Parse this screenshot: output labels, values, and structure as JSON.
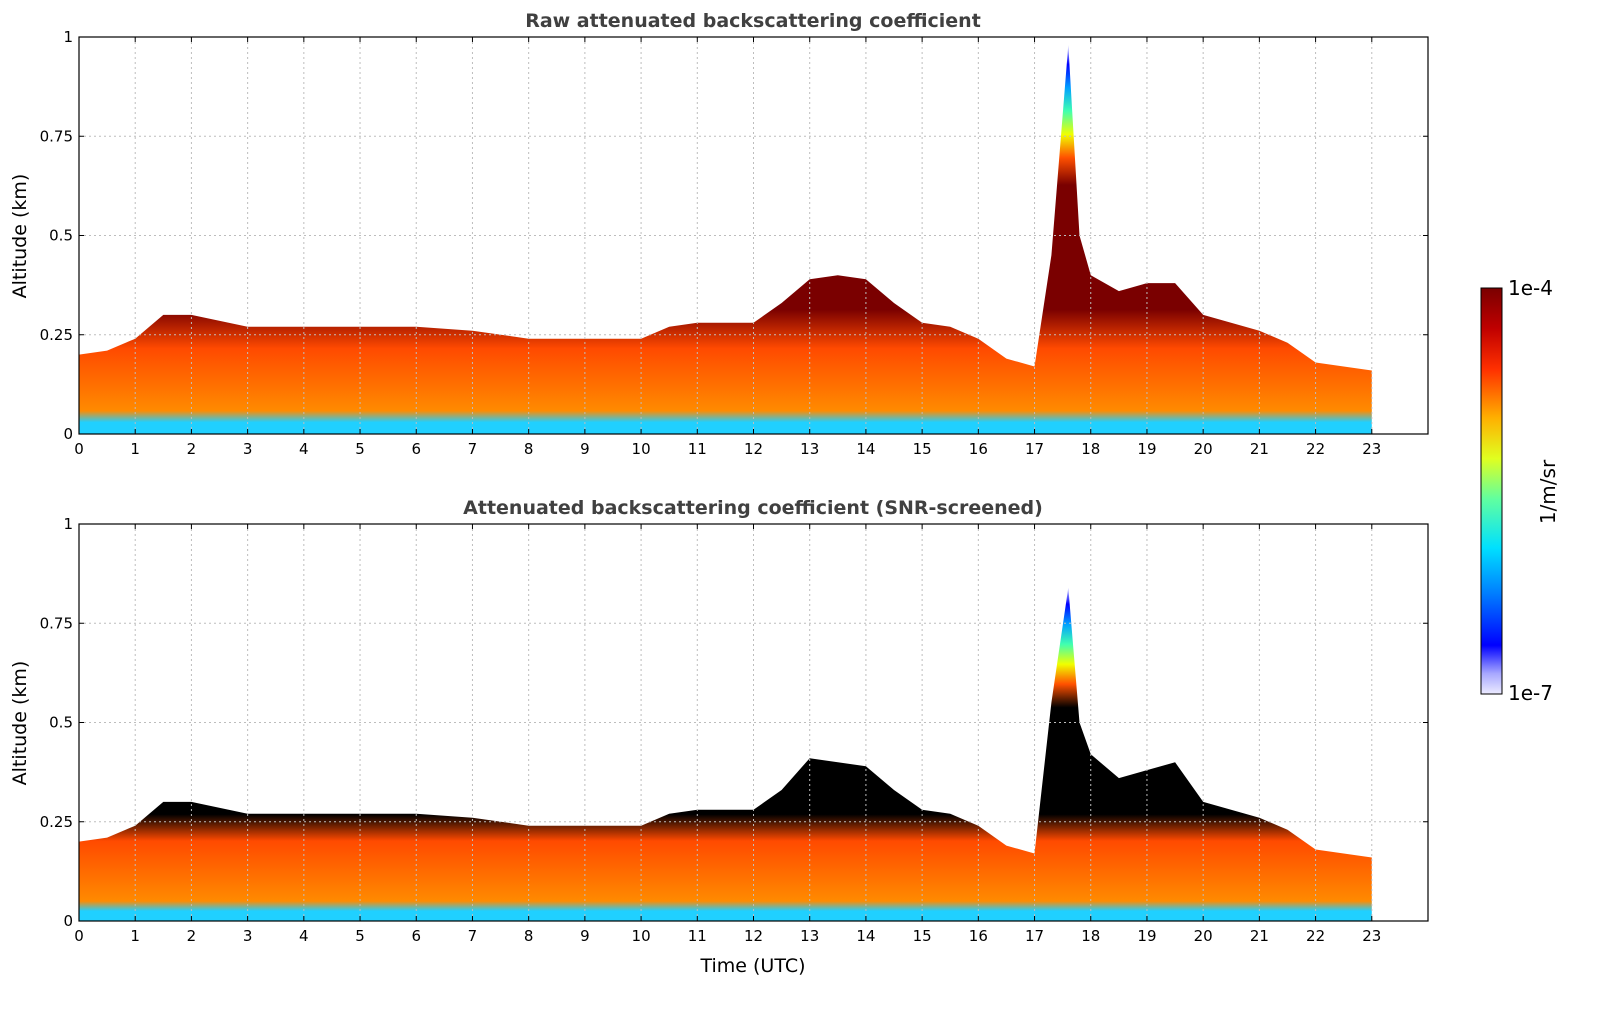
{
  "chart_data": [
    {
      "type": "heatmap",
      "title": "Raw attenuated backscattering coefficient",
      "xlabel": "",
      "ylabel": "Altitude (km)",
      "xlim": [
        0,
        24
      ],
      "ylim": [
        0,
        1
      ],
      "xticks": [
        "0",
        "1",
        "2",
        "3",
        "4",
        "5",
        "6",
        "7",
        "8",
        "9",
        "10",
        "11",
        "12",
        "13",
        "14",
        "15",
        "16",
        "17",
        "18",
        "19",
        "20",
        "21",
        "22",
        "23"
      ],
      "yticks": [
        "0",
        "0.25",
        "0.5",
        "0.75",
        "1"
      ],
      "grid": true,
      "data_end_hour": 23,
      "layer_top_km": [
        [
          0,
          0.2
        ],
        [
          0.5,
          0.21
        ],
        [
          1,
          0.24
        ],
        [
          1.5,
          0.3
        ],
        [
          2,
          0.3
        ],
        [
          3,
          0.27
        ],
        [
          4,
          0.27
        ],
        [
          5,
          0.27
        ],
        [
          6,
          0.27
        ],
        [
          7,
          0.26
        ],
        [
          8,
          0.24
        ],
        [
          9,
          0.24
        ],
        [
          10,
          0.24
        ],
        [
          10.5,
          0.27
        ],
        [
          11,
          0.28
        ],
        [
          12,
          0.28
        ],
        [
          12.5,
          0.33
        ],
        [
          13,
          0.39
        ],
        [
          13.5,
          0.4
        ],
        [
          14,
          0.39
        ],
        [
          14.5,
          0.33
        ],
        [
          15,
          0.28
        ],
        [
          15.5,
          0.27
        ],
        [
          16,
          0.24
        ],
        [
          16.5,
          0.19
        ],
        [
          17,
          0.17
        ],
        [
          17.3,
          0.45
        ],
        [
          17.6,
          0.98
        ],
        [
          17.8,
          0.5
        ],
        [
          18,
          0.4
        ],
        [
          18.5,
          0.36
        ],
        [
          19,
          0.38
        ],
        [
          19.5,
          0.38
        ],
        [
          20,
          0.3
        ],
        [
          21,
          0.26
        ],
        [
          21.5,
          0.23
        ],
        [
          22,
          0.18
        ],
        [
          23,
          0.16
        ]
      ]
    },
    {
      "type": "heatmap",
      "title": "Attenuated backscattering coefficient (SNR-screened)",
      "xlabel": "Time (UTC)",
      "ylabel": "Altitude (km)",
      "xlim": [
        0,
        24
      ],
      "ylim": [
        0,
        1
      ],
      "xticks": [
        "0",
        "1",
        "2",
        "3",
        "4",
        "5",
        "6",
        "7",
        "8",
        "9",
        "10",
        "11",
        "12",
        "13",
        "14",
        "15",
        "16",
        "17",
        "18",
        "19",
        "20",
        "21",
        "22",
        "23"
      ],
      "yticks": [
        "0",
        "0.25",
        "0.5",
        "0.75",
        "1"
      ],
      "grid": true,
      "data_end_hour": 23,
      "layer_top_km": [
        [
          0,
          0.2
        ],
        [
          0.5,
          0.21
        ],
        [
          1,
          0.24
        ],
        [
          1.5,
          0.3
        ],
        [
          2,
          0.3
        ],
        [
          3,
          0.27
        ],
        [
          4,
          0.27
        ],
        [
          5,
          0.27
        ],
        [
          6,
          0.27
        ],
        [
          7,
          0.26
        ],
        [
          8,
          0.24
        ],
        [
          9,
          0.24
        ],
        [
          10,
          0.24
        ],
        [
          10.5,
          0.27
        ],
        [
          11,
          0.28
        ],
        [
          12,
          0.28
        ],
        [
          12.5,
          0.33
        ],
        [
          13,
          0.41
        ],
        [
          13.5,
          0.4
        ],
        [
          14,
          0.39
        ],
        [
          14.5,
          0.33
        ],
        [
          15,
          0.28
        ],
        [
          15.5,
          0.27
        ],
        [
          16,
          0.24
        ],
        [
          16.5,
          0.19
        ],
        [
          17,
          0.17
        ],
        [
          17.3,
          0.55
        ],
        [
          17.6,
          0.84
        ],
        [
          17.8,
          0.5
        ],
        [
          18,
          0.42
        ],
        [
          18.5,
          0.36
        ],
        [
          19,
          0.38
        ],
        [
          19.5,
          0.4
        ],
        [
          20,
          0.3
        ],
        [
          21,
          0.26
        ],
        [
          21.5,
          0.23
        ],
        [
          22,
          0.18
        ],
        [
          23,
          0.16
        ]
      ]
    }
  ],
  "colorbar": {
    "label": "1/m/sr",
    "max_label": "1e-4",
    "min_label": "1e-7",
    "scale": "log",
    "colors": [
      "#e8e8ff",
      "#0000ff",
      "#00bfff",
      "#40ffc0",
      "#c0ff40",
      "#ffd000",
      "#ff4000",
      "#c00000",
      "#800000"
    ]
  }
}
